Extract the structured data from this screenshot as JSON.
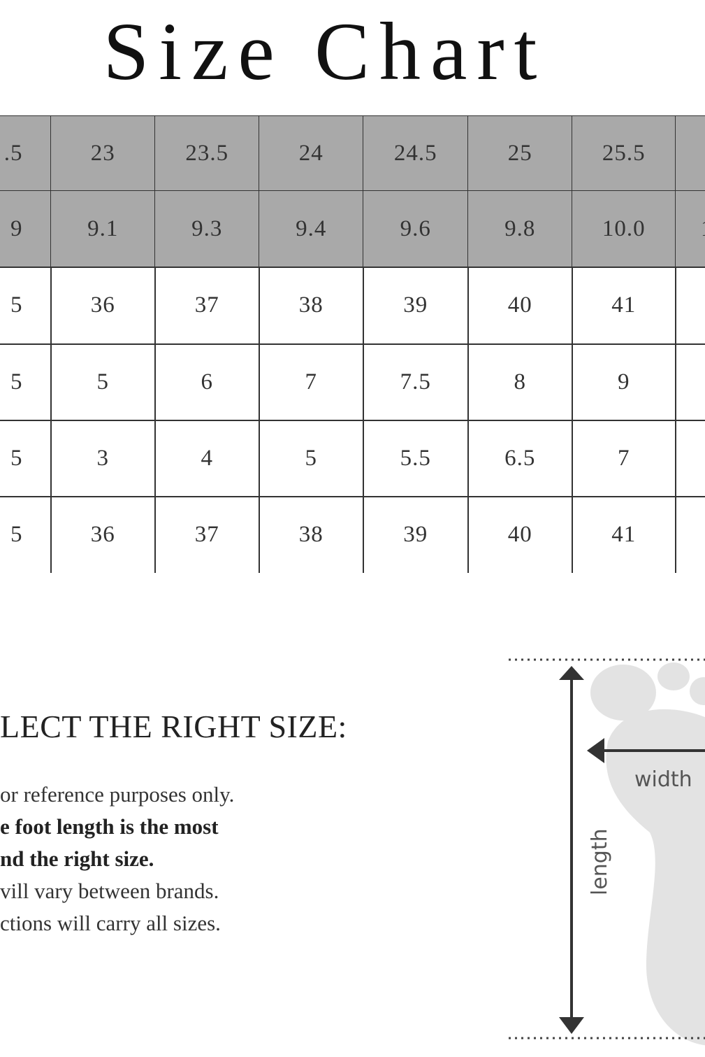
{
  "title": "Size Chart",
  "table": {
    "rows": [
      [
        ".5",
        "23",
        "23.5",
        "24",
        "24.5",
        "25",
        "25.5",
        ""
      ],
      [
        "9",
        "9.1",
        "9.3",
        "9.4",
        "9.6",
        "9.8",
        "10.0",
        "1"
      ],
      [
        "5",
        "36",
        "37",
        "38",
        "39",
        "40",
        "41",
        ""
      ],
      [
        "5",
        "5",
        "6",
        "7",
        "7.5",
        "8",
        "9",
        ""
      ],
      [
        "5",
        "3",
        "4",
        "5",
        "5.5",
        "6.5",
        "7",
        ""
      ],
      [
        "5",
        "36",
        "37",
        "38",
        "39",
        "40",
        "41",
        ""
      ]
    ],
    "header_row_color": "#a9a9a9"
  },
  "guide": {
    "heading": "LECT THE RIGHT SIZE:",
    "lines": [
      {
        "text": "or reference purposes only.",
        "bold": false
      },
      {
        "text": "e foot length is the most",
        "bold": true
      },
      {
        "text": "nd the right size.",
        "bold": true
      },
      {
        "text": "vill vary between brands.",
        "bold": false
      },
      {
        "text": "ctions will carry all sizes.",
        "bold": false
      }
    ]
  },
  "diagram": {
    "width_label": "width",
    "length_label": "length",
    "foot_color": "#e3e3e3",
    "arrow_color": "#333333"
  }
}
